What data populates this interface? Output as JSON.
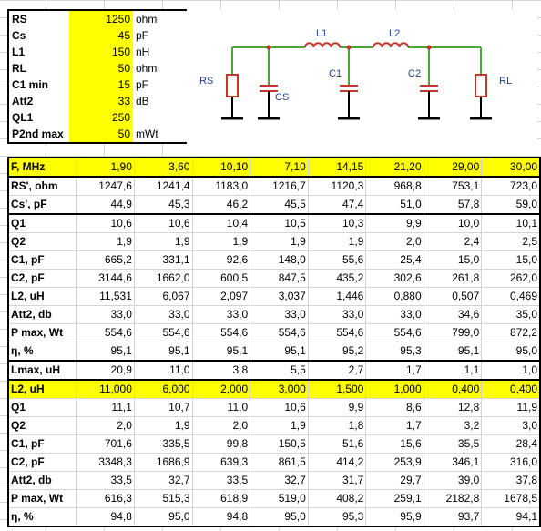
{
  "params": [
    {
      "label": "RS",
      "value": "1250",
      "unit": "ohm"
    },
    {
      "label": "Cs",
      "value": "45",
      "unit": "pF"
    },
    {
      "label": "L1",
      "value": "150",
      "unit": "nH"
    },
    {
      "label": "RL",
      "value": "50",
      "unit": "ohm"
    },
    {
      "label": "C1 min",
      "value": "15",
      "unit": "pF"
    },
    {
      "label": "Att2",
      "value": "33",
      "unit": "dB"
    },
    {
      "label": "QL1",
      "value": "250",
      "unit": ""
    },
    {
      "label": "P2nd max",
      "value": "50",
      "unit": "mWt"
    }
  ],
  "schematic": {
    "labels": {
      "rs": "RS",
      "cs": "CS",
      "l1": "L1",
      "c1": "C1",
      "l2": "L2",
      "c2": "C2",
      "rl": "RL"
    },
    "colors": {
      "wire": "#4aa832",
      "component": "#c0392b",
      "ground": "#000000",
      "text": "#1f3f8f"
    }
  },
  "table": {
    "rows": [
      {
        "label": "F, MHz",
        "values": [
          "1,90",
          "3,60",
          "10,10",
          "7,10",
          "14,15",
          "21,20",
          "29,00",
          "30,00"
        ],
        "style": "yellow sep"
      },
      {
        "label": "RS', ohm",
        "values": [
          "1247,6",
          "1241,4",
          "1183,0",
          "1216,7",
          "1120,3",
          "968,8",
          "753,1",
          "723,0"
        ],
        "style": "sep"
      },
      {
        "label": "Cs', pF",
        "values": [
          "44,9",
          "45,3",
          "46,2",
          "45,5",
          "47,4",
          "51,0",
          "57,8",
          "59,0"
        ],
        "style": ""
      },
      {
        "label": "Q1",
        "values": [
          "10,6",
          "10,6",
          "10,4",
          "10,5",
          "10,3",
          "9,9",
          "10,0",
          "10,1"
        ],
        "style": "sep"
      },
      {
        "label": "Q2",
        "values": [
          "1,9",
          "1,9",
          "1,9",
          "1,9",
          "1,9",
          "2,0",
          "2,4",
          "2,5"
        ],
        "style": ""
      },
      {
        "label": "C1, pF",
        "values": [
          "665,2",
          "331,1",
          "92,6",
          "148,0",
          "55,6",
          "25,4",
          "15,0",
          "15,0"
        ],
        "style": ""
      },
      {
        "label": "C2, pF",
        "values": [
          "3144,6",
          "1662,0",
          "600,5",
          "847,5",
          "435,2",
          "302,6",
          "261,8",
          "262,0"
        ],
        "style": ""
      },
      {
        "label": "L2, uH",
        "values": [
          "11,531",
          "6,067",
          "2,097",
          "3,037",
          "1,446",
          "0,880",
          "0,507",
          "0,469"
        ],
        "style": ""
      },
      {
        "label": "Att2, db",
        "values": [
          "33,0",
          "33,0",
          "33,0",
          "33,0",
          "33,0",
          "33,0",
          "34,6",
          "35,0"
        ],
        "style": ""
      },
      {
        "label": "P max, Wt",
        "values": [
          "554,6",
          "554,6",
          "554,6",
          "554,6",
          "554,6",
          "554,6",
          "799,0",
          "872,2"
        ],
        "style": ""
      },
      {
        "label": "η, %",
        "values": [
          "95,1",
          "95,1",
          "95,1",
          "95,1",
          "95,2",
          "95,3",
          "95,1",
          "95,0"
        ],
        "style": ""
      },
      {
        "label": "Lmax, uH",
        "values": [
          "20,9",
          "11,0",
          "3,8",
          "5,5",
          "2,7",
          "1,7",
          "1,1",
          "1,0"
        ],
        "style": "sep"
      },
      {
        "label": "L2, uH",
        "values": [
          "11,000",
          "6,000",
          "2,000",
          "3,000",
          "1,500",
          "1,000",
          "0,400",
          "0,400"
        ],
        "style": "yellow sep"
      },
      {
        "label": "Q1",
        "values": [
          "11,1",
          "10,7",
          "11,0",
          "10,6",
          "9,9",
          "8,6",
          "12,8",
          "11,9"
        ],
        "style": ""
      },
      {
        "label": "Q2",
        "values": [
          "2,0",
          "1,9",
          "2,0",
          "1,9",
          "1,8",
          "1,7",
          "3,2",
          "3,0"
        ],
        "style": ""
      },
      {
        "label": "C1, pF",
        "values": [
          "701,6",
          "335,5",
          "99,8",
          "150,5",
          "51,6",
          "15,6",
          "35,5",
          "28,4"
        ],
        "style": ""
      },
      {
        "label": "C2, pF",
        "values": [
          "3348,3",
          "1686,9",
          "639,3",
          "861,5",
          "414,2",
          "253,9",
          "346,1",
          "316,0"
        ],
        "style": ""
      },
      {
        "label": "Att2, db",
        "values": [
          "33,5",
          "32,7",
          "33,5",
          "32,7",
          "31,7",
          "29,7",
          "39,0",
          "37,8"
        ],
        "style": ""
      },
      {
        "label": "P max, Wt",
        "values": [
          "616,3",
          "515,3",
          "618,9",
          "519,0",
          "408,2",
          "259,1",
          "2182,8",
          "1678,5"
        ],
        "style": ""
      },
      {
        "label": "η, %",
        "values": [
          "94,8",
          "95,0",
          "94,8",
          "95,0",
          "95,3",
          "95,9",
          "93,7",
          "94,1"
        ],
        "style": "last"
      }
    ]
  }
}
